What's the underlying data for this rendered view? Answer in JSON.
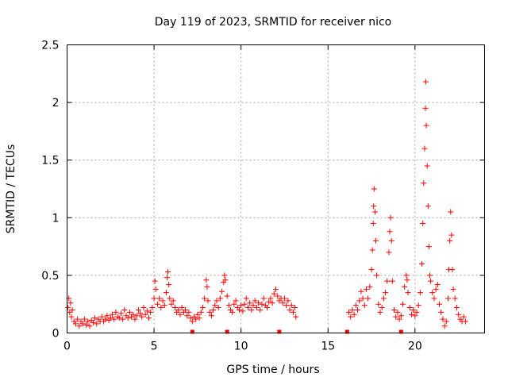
{
  "chart_data": {
    "type": "scatter",
    "title": "Day 119 of 2023, SRMTID for receiver nico",
    "xlabel": "GPS time / hours",
    "ylabel": "SRMTID / TECUs",
    "xlim": [
      0,
      24
    ],
    "ylim": [
      0,
      2.5
    ],
    "x_ticks": [
      0,
      5,
      10,
      15,
      20
    ],
    "y_ticks": [
      0,
      0.5,
      1,
      1.5,
      2,
      2.5
    ],
    "x_tick_labels": [
      "0",
      "5",
      "10",
      "15",
      "20"
    ],
    "y_tick_labels": [
      "0",
      "0.5",
      "1",
      "1.5",
      "2",
      "2.5"
    ],
    "grid": true,
    "marker": "+",
    "series_color": "#ff0000",
    "gap_markers": [
      7.2,
      9.2,
      12.2,
      16.1,
      19.2
    ],
    "series": [
      {
        "name": "SRMTID",
        "points": [
          [
            0.05,
            0.22
          ],
          [
            0.1,
            0.3
          ],
          [
            0.15,
            0.18
          ],
          [
            0.2,
            0.26
          ],
          [
            0.25,
            0.14
          ],
          [
            0.3,
            0.2
          ],
          [
            0.4,
            0.1
          ],
          [
            0.5,
            0.08
          ],
          [
            0.6,
            0.12
          ],
          [
            0.7,
            0.06
          ],
          [
            0.8,
            0.1
          ],
          [
            0.9,
            0.08
          ],
          [
            1.0,
            0.12
          ],
          [
            1.1,
            0.07
          ],
          [
            1.2,
            0.1
          ],
          [
            1.3,
            0.06
          ],
          [
            1.4,
            0.11
          ],
          [
            1.5,
            0.09
          ],
          [
            1.6,
            0.13
          ],
          [
            1.7,
            0.08
          ],
          [
            1.8,
            0.12
          ],
          [
            1.9,
            0.1
          ],
          [
            2.0,
            0.14
          ],
          [
            2.1,
            0.1
          ],
          [
            2.2,
            0.12
          ],
          [
            2.3,
            0.15
          ],
          [
            2.4,
            0.11
          ],
          [
            2.5,
            0.13
          ],
          [
            2.6,
            0.16
          ],
          [
            2.7,
            0.12
          ],
          [
            2.8,
            0.18
          ],
          [
            2.9,
            0.14
          ],
          [
            3.0,
            0.13
          ],
          [
            3.1,
            0.17
          ],
          [
            3.2,
            0.12
          ],
          [
            3.3,
            0.2
          ],
          [
            3.4,
            0.15
          ],
          [
            3.5,
            0.13
          ],
          [
            3.6,
            0.18
          ],
          [
            3.7,
            0.14
          ],
          [
            3.8,
            0.16
          ],
          [
            3.9,
            0.12
          ],
          [
            4.0,
            0.15
          ],
          [
            4.1,
            0.2
          ],
          [
            4.2,
            0.17
          ],
          [
            4.3,
            0.14
          ],
          [
            4.4,
            0.22
          ],
          [
            4.5,
            0.16
          ],
          [
            4.6,
            0.19
          ],
          [
            4.7,
            0.13
          ],
          [
            4.8,
            0.18
          ],
          [
            4.9,
            0.22
          ],
          [
            5.0,
            0.3
          ],
          [
            5.05,
            0.45
          ],
          [
            5.1,
            0.38
          ],
          [
            5.2,
            0.25
          ],
          [
            5.3,
            0.3
          ],
          [
            5.4,
            0.22
          ],
          [
            5.5,
            0.28
          ],
          [
            5.6,
            0.24
          ],
          [
            5.7,
            0.35
          ],
          [
            5.75,
            0.48
          ],
          [
            5.8,
            0.53
          ],
          [
            5.85,
            0.42
          ],
          [
            5.9,
            0.3
          ],
          [
            6.0,
            0.25
          ],
          [
            6.1,
            0.28
          ],
          [
            6.2,
            0.22
          ],
          [
            6.3,
            0.18
          ],
          [
            6.4,
            0.2
          ],
          [
            6.5,
            0.16
          ],
          [
            6.6,
            0.22
          ],
          [
            6.7,
            0.18
          ],
          [
            6.8,
            0.2
          ],
          [
            6.9,
            0.15
          ],
          [
            7.0,
            0.18
          ],
          [
            7.1,
            0.13
          ],
          [
            7.2,
            0.1
          ],
          [
            7.3,
            0.14
          ],
          [
            7.4,
            0.12
          ],
          [
            7.5,
            0.16
          ],
          [
            7.6,
            0.13
          ],
          [
            7.7,
            0.18
          ],
          [
            7.8,
            0.22
          ],
          [
            7.9,
            0.3
          ],
          [
            8.0,
            0.46
          ],
          [
            8.05,
            0.4
          ],
          [
            8.1,
            0.28
          ],
          [
            8.2,
            0.18
          ],
          [
            8.3,
            0.15
          ],
          [
            8.4,
            0.2
          ],
          [
            8.5,
            0.24
          ],
          [
            8.6,
            0.28
          ],
          [
            8.7,
            0.22
          ],
          [
            8.8,
            0.3
          ],
          [
            8.9,
            0.36
          ],
          [
            9.0,
            0.44
          ],
          [
            9.05,
            0.5
          ],
          [
            9.1,
            0.46
          ],
          [
            9.2,
            0.32
          ],
          [
            9.3,
            0.24
          ],
          [
            9.4,
            0.2
          ],
          [
            9.5,
            0.18
          ],
          [
            9.6,
            0.25
          ],
          [
            9.7,
            0.28
          ],
          [
            9.8,
            0.22
          ],
          [
            9.9,
            0.2
          ],
          [
            10.0,
            0.24
          ],
          [
            10.1,
            0.19
          ],
          [
            10.2,
            0.25
          ],
          [
            10.3,
            0.3
          ],
          [
            10.4,
            0.22
          ],
          [
            10.5,
            0.26
          ],
          [
            10.6,
            0.2
          ],
          [
            10.7,
            0.24
          ],
          [
            10.8,
            0.28
          ],
          [
            10.9,
            0.22
          ],
          [
            11.0,
            0.26
          ],
          [
            11.1,
            0.2
          ],
          [
            11.2,
            0.25
          ],
          [
            11.3,
            0.3
          ],
          [
            11.4,
            0.24
          ],
          [
            11.5,
            0.22
          ],
          [
            11.6,
            0.27
          ],
          [
            11.7,
            0.3
          ],
          [
            11.8,
            0.26
          ],
          [
            11.9,
            0.34
          ],
          [
            12.0,
            0.38
          ],
          [
            12.1,
            0.32
          ],
          [
            12.2,
            0.28
          ],
          [
            12.3,
            0.3
          ],
          [
            12.4,
            0.26
          ],
          [
            12.5,
            0.3
          ],
          [
            12.6,
            0.24
          ],
          [
            12.7,
            0.28
          ],
          [
            12.8,
            0.2
          ],
          [
            12.9,
            0.24
          ],
          [
            13.0,
            0.18
          ],
          [
            13.1,
            0.22
          ],
          [
            13.15,
            0.14
          ],
          [
            16.2,
            0.18
          ],
          [
            16.3,
            0.14
          ],
          [
            16.4,
            0.2
          ],
          [
            16.5,
            0.16
          ],
          [
            16.6,
            0.24
          ],
          [
            16.7,
            0.2
          ],
          [
            16.8,
            0.28
          ],
          [
            16.9,
            0.36
          ],
          [
            17.0,
            0.3
          ],
          [
            17.1,
            0.24
          ],
          [
            17.2,
            0.38
          ],
          [
            17.3,
            0.3
          ],
          [
            17.4,
            0.4
          ],
          [
            17.5,
            0.55
          ],
          [
            17.55,
            0.72
          ],
          [
            17.6,
            0.95
          ],
          [
            17.62,
            1.1
          ],
          [
            17.65,
            1.25
          ],
          [
            17.7,
            1.05
          ],
          [
            17.75,
            0.8
          ],
          [
            17.8,
            0.5
          ],
          [
            17.9,
            0.25
          ],
          [
            18.0,
            0.18
          ],
          [
            18.1,
            0.22
          ],
          [
            18.2,
            0.3
          ],
          [
            18.3,
            0.35
          ],
          [
            18.4,
            0.45
          ],
          [
            18.5,
            0.7
          ],
          [
            18.55,
            0.88
          ],
          [
            18.6,
            1.0
          ],
          [
            18.65,
            0.8
          ],
          [
            18.7,
            0.45
          ],
          [
            18.8,
            0.2
          ],
          [
            18.9,
            0.14
          ],
          [
            19.0,
            0.18
          ],
          [
            19.1,
            0.12
          ],
          [
            19.2,
            0.15
          ],
          [
            19.3,
            0.25
          ],
          [
            19.4,
            0.4
          ],
          [
            19.5,
            0.5
          ],
          [
            19.55,
            0.46
          ],
          [
            19.6,
            0.35
          ],
          [
            19.7,
            0.22
          ],
          [
            19.8,
            0.16
          ],
          [
            19.9,
            0.2
          ],
          [
            20.0,
            0.15
          ],
          [
            20.1,
            0.18
          ],
          [
            20.2,
            0.24
          ],
          [
            20.3,
            0.35
          ],
          [
            20.4,
            0.6
          ],
          [
            20.45,
            0.95
          ],
          [
            20.5,
            1.3
          ],
          [
            20.55,
            1.6
          ],
          [
            20.6,
            1.95
          ],
          [
            20.62,
            2.18
          ],
          [
            20.65,
            1.8
          ],
          [
            20.7,
            1.45
          ],
          [
            20.75,
            1.1
          ],
          [
            20.8,
            0.75
          ],
          [
            20.85,
            0.5
          ],
          [
            20.9,
            0.45
          ],
          [
            21.0,
            0.35
          ],
          [
            21.1,
            0.3
          ],
          [
            21.2,
            0.38
          ],
          [
            21.3,
            0.42
          ],
          [
            21.4,
            0.25
          ],
          [
            21.5,
            0.18
          ],
          [
            21.6,
            0.12
          ],
          [
            21.7,
            0.06
          ],
          [
            21.8,
            0.1
          ],
          [
            21.9,
            0.3
          ],
          [
            21.95,
            0.55
          ],
          [
            22.0,
            0.8
          ],
          [
            22.05,
            1.05
          ],
          [
            22.1,
            0.85
          ],
          [
            22.15,
            0.55
          ],
          [
            22.2,
            0.38
          ],
          [
            22.3,
            0.3
          ],
          [
            22.4,
            0.22
          ],
          [
            22.5,
            0.16
          ],
          [
            22.6,
            0.12
          ],
          [
            22.7,
            0.1
          ],
          [
            22.8,
            0.14
          ],
          [
            22.9,
            0.1
          ]
        ]
      }
    ]
  }
}
